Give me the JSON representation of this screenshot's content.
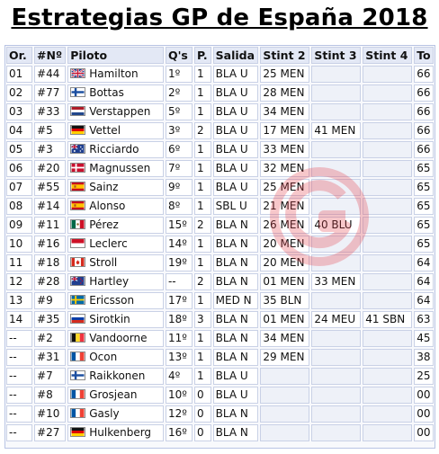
{
  "title": "Estrategias GP de España 2018",
  "headers": [
    "Or.",
    "#Nº",
    "Piloto",
    "Q's",
    "P.",
    "Salida",
    "Stint 2",
    "Stint 3",
    "Stint 4",
    "To"
  ],
  "rows": [
    {
      "or": "01",
      "num": "#44",
      "flag": "gb",
      "flag_icon": "uk-flag-icon",
      "driver": "Hamilton",
      "q": "1º",
      "p": "1",
      "salida": "BLA U",
      "s2": "25 MEN",
      "s3": "",
      "s4": "",
      "to": "66"
    },
    {
      "or": "02",
      "num": "#77",
      "flag": "fi",
      "flag_icon": "finland-flag-icon",
      "driver": "Bottas",
      "q": "2º",
      "p": "1",
      "salida": "BLA U",
      "s2": "28 MEN",
      "s3": "",
      "s4": "",
      "to": "66"
    },
    {
      "or": "03",
      "num": "#33",
      "flag": "nl",
      "flag_icon": "netherlands-flag-icon",
      "driver": "Verstappen",
      "q": "5º",
      "p": "1",
      "salida": "BLA U",
      "s2": "34 MEN",
      "s3": "",
      "s4": "",
      "to": "66"
    },
    {
      "or": "04",
      "num": "#5",
      "flag": "de",
      "flag_icon": "germany-flag-icon",
      "driver": "Vettel",
      "q": "3º",
      "p": "2",
      "salida": "BLA U",
      "s2": "17 MEN",
      "s3": "41 MEN",
      "s4": "",
      "to": "66"
    },
    {
      "or": "05",
      "num": "#3",
      "flag": "au",
      "flag_icon": "australia-flag-icon",
      "driver": "Ricciardo",
      "q": "6º",
      "p": "1",
      "salida": "BLA U",
      "s2": "33 MEN",
      "s3": "",
      "s4": "",
      "to": "66"
    },
    {
      "or": "06",
      "num": "#20",
      "flag": "dk",
      "flag_icon": "denmark-flag-icon",
      "driver": "Magnussen",
      "q": "7º",
      "p": "1",
      "salida": "BLA U",
      "s2": "32 MEN",
      "s3": "",
      "s4": "",
      "to": "65"
    },
    {
      "or": "07",
      "num": "#55",
      "flag": "es",
      "flag_icon": "spain-flag-icon",
      "driver": "Sainz",
      "q": "9º",
      "p": "1",
      "salida": "BLA U",
      "s2": "25 MEN",
      "s3": "",
      "s4": "",
      "to": "65"
    },
    {
      "or": "08",
      "num": "#14",
      "flag": "es",
      "flag_icon": "spain-flag-icon",
      "driver": "Alonso",
      "q": "8º",
      "p": "1",
      "salida": "SBL U",
      "s2": "21 MEN",
      "s3": "",
      "s4": "",
      "to": "65"
    },
    {
      "or": "09",
      "num": "#11",
      "flag": "mx",
      "flag_icon": "mexico-flag-icon",
      "driver": "Pérez",
      "q": "15º",
      "p": "2",
      "salida": "BLA N",
      "s2": "26 MEN",
      "s3": "40 BLU",
      "s4": "",
      "to": "65"
    },
    {
      "or": "10",
      "num": "#16",
      "flag": "mc",
      "flag_icon": "monaco-flag-icon",
      "driver": "Leclerc",
      "q": "14º",
      "p": "1",
      "salida": "BLA N",
      "s2": "20 MEN",
      "s3": "",
      "s4": "",
      "to": "65"
    },
    {
      "or": "11",
      "num": "#18",
      "flag": "ca",
      "flag_icon": "canada-flag-icon",
      "driver": "Stroll",
      "q": "19º",
      "p": "1",
      "salida": "BLA N",
      "s2": "20 MEN",
      "s3": "",
      "s4": "",
      "to": "64"
    },
    {
      "or": "12",
      "num": "#28",
      "flag": "nz",
      "flag_icon": "new-zealand-flag-icon",
      "driver": "Hartley",
      "q": "--",
      "p": "2",
      "salida": "BLA N",
      "s2": "01 MEN",
      "s3": "33 MEN",
      "s4": "",
      "to": "64"
    },
    {
      "or": "13",
      "num": "#9",
      "flag": "se",
      "flag_icon": "sweden-flag-icon",
      "driver": "Ericsson",
      "q": "17º",
      "p": "1",
      "salida": "MED N",
      "s2": "35 BLN",
      "s3": "",
      "s4": "",
      "to": "64"
    },
    {
      "or": "14",
      "num": "#35",
      "flag": "ru",
      "flag_icon": "russia-flag-icon",
      "driver": "Sirotkin",
      "q": "18º",
      "p": "3",
      "salida": "BLA N",
      "s2": "01 MEN",
      "s3": "24 MEU",
      "s4": "41 SBN",
      "to": "63"
    },
    {
      "or": "--",
      "num": "#2",
      "flag": "be",
      "flag_icon": "belgium-flag-icon",
      "driver": "Vandoorne",
      "q": "11º",
      "p": "1",
      "salida": "BLA N",
      "s2": "34 MEN",
      "s3": "",
      "s4": "",
      "to": "45"
    },
    {
      "or": "--",
      "num": "#31",
      "flag": "fr",
      "flag_icon": "france-flag-icon",
      "driver": "Ocon",
      "q": "13º",
      "p": "1",
      "salida": "BLA N",
      "s2": "29 MEN",
      "s3": "",
      "s4": "",
      "to": "38"
    },
    {
      "or": "--",
      "num": "#7",
      "flag": "fi",
      "flag_icon": "finland-flag-icon",
      "driver": "Raikkonen",
      "q": "4º",
      "p": "1",
      "salida": "BLA U",
      "s2": "",
      "s3": "",
      "s4": "",
      "to": "25"
    },
    {
      "or": "--",
      "num": "#8",
      "flag": "fr",
      "flag_icon": "france-flag-icon",
      "driver": "Grosjean",
      "q": "10º",
      "p": "0",
      "salida": "BLA U",
      "s2": "",
      "s3": "",
      "s4": "",
      "to": "00"
    },
    {
      "or": "--",
      "num": "#10",
      "flag": "fr",
      "flag_icon": "france-flag-icon",
      "driver": "Gasly",
      "q": "12º",
      "p": "0",
      "salida": "BLA N",
      "s2": "",
      "s3": "",
      "s4": "",
      "to": "00"
    },
    {
      "or": "--",
      "num": "#27",
      "flag": "de",
      "flag_icon": "germany-flag-icon",
      "driver": "Hulkenberg",
      "q": "16º",
      "p": "0",
      "salida": "BLA N",
      "s2": "",
      "s3": "",
      "s4": "",
      "to": "00"
    }
  ],
  "colors": {
    "border": "#c9d1e6",
    "header_bg": "#e3e8f5",
    "empty_cell": "#eef1f8",
    "watermark": "#e63946"
  }
}
